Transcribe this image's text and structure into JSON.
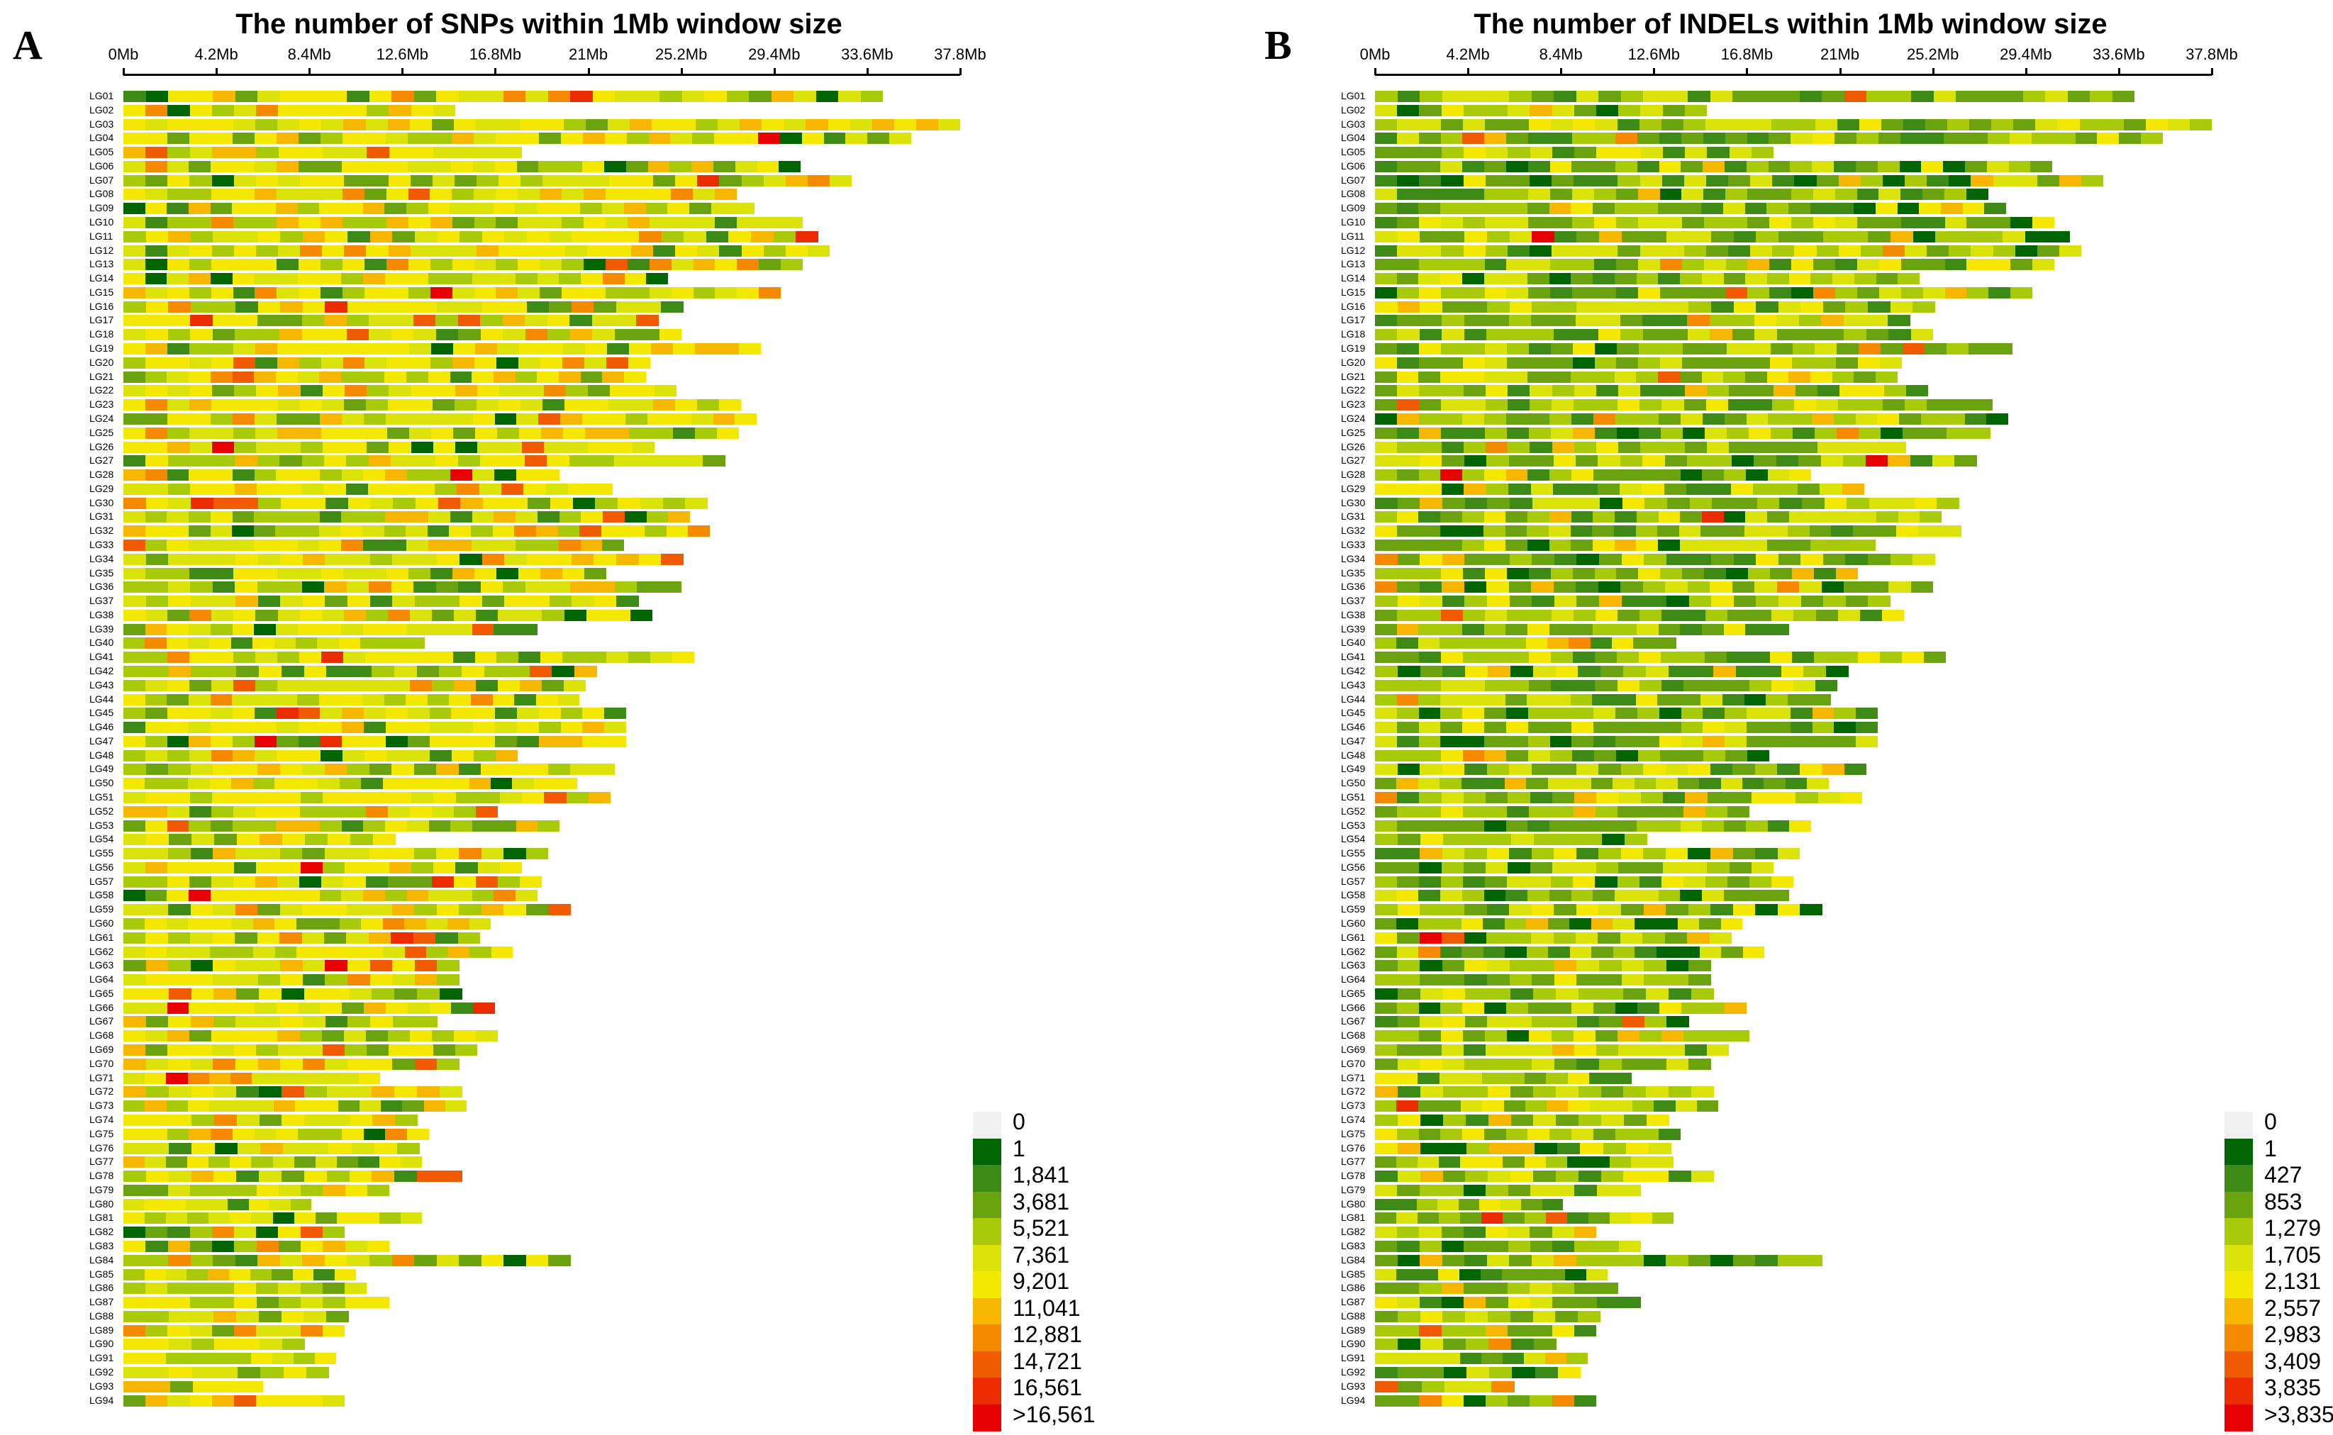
{
  "chart_data": [
    {
      "panel": "A",
      "type": "heatmap",
      "title": "The number of SNPs within 1Mb window size",
      "axis_ticks": [
        "0Mb",
        "4.2Mb",
        "8.4Mb",
        "12.6Mb",
        "16.8Mb",
        "21Mb",
        "25.2Mb",
        "29.4Mb",
        "33.6Mb",
        "37.8Mb"
      ],
      "axis_range_mb": [
        0,
        37.8
      ],
      "legend": {
        "labels": [
          "0",
          "1",
          "1,841",
          "3,681",
          "5,521",
          "7,361",
          "9,201",
          "11,041",
          "12,881",
          "14,721",
          "16,561",
          ">16,561"
        ],
        "colors": [
          "#f0f0f0",
          "#006400",
          "#3d8a17",
          "#6aa30f",
          "#a9c90b",
          "#dbe30a",
          "#f5e800",
          "#f7b700",
          "#f58a00",
          "#f05a00",
          "#eb2b00",
          "#e80000"
        ]
      },
      "chromosomes": [
        "LG01",
        "LG02",
        "LG03",
        "LG04",
        "LG05",
        "LG06",
        "LG07",
        "LG08",
        "LG09",
        "LG10",
        "LG11",
        "LG12",
        "LG13",
        "LG14",
        "LG15",
        "LG16",
        "LG17",
        "LG18",
        "LG19",
        "LG20",
        "LG21",
        "LG22",
        "LG23",
        "LG24",
        "LG25",
        "LG26",
        "LG27",
        "LG28",
        "LG29",
        "LG30",
        "LG31",
        "LG32",
        "LG33",
        "LG34",
        "LG35",
        "LG36",
        "LG37",
        "LG38",
        "LG39",
        "LG40",
        "LG41",
        "LG42",
        "LG43",
        "LG44",
        "LG45",
        "LG46",
        "LG47",
        "LG48",
        "LG49",
        "LG50",
        "LG51",
        "LG52",
        "LG53",
        "LG54",
        "LG55",
        "LG56",
        "LG57",
        "LG58",
        "LG59",
        "LG60",
        "LG61",
        "LG62",
        "LG63",
        "LG64",
        "LG65",
        "LG66",
        "LG67",
        "LG68",
        "LG69",
        "LG70",
        "LG71",
        "LG72",
        "LG73",
        "LG74",
        "LG75",
        "LG76",
        "LG77",
        "LG78",
        "LG79",
        "LG80",
        "LG81",
        "LG82",
        "LG83",
        "LG84",
        "LG85",
        "LG86",
        "LG87",
        "LG88",
        "LG89",
        "LG90",
        "LG91",
        "LG92",
        "LG93",
        "LG94"
      ],
      "lengths_mb": [
        34.3,
        15.0,
        37.8,
        35.6,
        18.0,
        30.6,
        32.9,
        27.7,
        28.5,
        30.7,
        31.4,
        31.9,
        30.7,
        24.6,
        29.7,
        25.3,
        24.2,
        25.2,
        28.8,
        23.8,
        23.6,
        25.0,
        27.9,
        28.6,
        27.8,
        24.0,
        27.2,
        19.7,
        22.1,
        26.4,
        25.6,
        26.5,
        22.6,
        25.3,
        21.8,
        25.2,
        23.3,
        23.9,
        18.7,
        13.6,
        25.8,
        21.4,
        20.9,
        20.6,
        22.7,
        22.7,
        22.7,
        17.8,
        22.2,
        20.5,
        22.0,
        16.9,
        19.7,
        12.3,
        19.2,
        18.0,
        18.9,
        18.7,
        20.2,
        16.6,
        16.1,
        17.6,
        15.2,
        15.2,
        15.3,
        16.8,
        14.2,
        16.9,
        16.0,
        15.2,
        11.6,
        15.3,
        15.5,
        13.3,
        13.8,
        13.4,
        13.5,
        15.3,
        12.0,
        8.5,
        13.5,
        10.0,
        12.0,
        20.2,
        10.5,
        11.0,
        12.0,
        10.2,
        10.0,
        8.2,
        9.6,
        9.3,
        6.3,
        10.0
      ]
    },
    {
      "panel": "B",
      "type": "heatmap",
      "title": "The number of INDELs within 1Mb window size",
      "axis_ticks": [
        "0Mb",
        "4.2Mb",
        "8.4Mb",
        "12.6Mb",
        "16.8Mb",
        "21Mb",
        "25.2Mb",
        "29.4Mb",
        "33.6Mb",
        "37.8Mb"
      ],
      "axis_range_mb": [
        0,
        37.8
      ],
      "legend": {
        "labels": [
          "0",
          "1",
          "427",
          "853",
          "1,279",
          "1,705",
          "2,131",
          "2,557",
          "2,983",
          "3,409",
          "3,835",
          ">3,835"
        ],
        "colors": [
          "#f0f0f0",
          "#006400",
          "#3d8a17",
          "#6aa30f",
          "#a9c90b",
          "#dbe30a",
          "#f5e800",
          "#f7b700",
          "#f58a00",
          "#f05a00",
          "#eb2b00",
          "#e80000"
        ]
      },
      "chromosomes": [
        "LG01",
        "LG02",
        "LG03",
        "LG04",
        "LG05",
        "LG06",
        "LG07",
        "LG08",
        "LG09",
        "LG10",
        "LG11",
        "LG12",
        "LG13",
        "LG14",
        "LG15",
        "LG16",
        "LG17",
        "LG18",
        "LG19",
        "LG20",
        "LG21",
        "LG22",
        "LG23",
        "LG24",
        "LG25",
        "LG26",
        "LG27",
        "LG28",
        "LG29",
        "LG30",
        "LG31",
        "LG32",
        "LG33",
        "LG34",
        "LG35",
        "LG36",
        "LG37",
        "LG38",
        "LG39",
        "LG40",
        "LG41",
        "LG42",
        "LG43",
        "LG44",
        "LG45",
        "LG46",
        "LG47",
        "LG48",
        "LG49",
        "LG50",
        "LG51",
        "LG52",
        "LG53",
        "LG54",
        "LG55",
        "LG56",
        "LG57",
        "LG58",
        "LG59",
        "LG60",
        "LG61",
        "LG62",
        "LG63",
        "LG64",
        "LG65",
        "LG66",
        "LG67",
        "LG68",
        "LG69",
        "LG70",
        "LG71",
        "LG72",
        "LG73",
        "LG74",
        "LG75",
        "LG76",
        "LG77",
        "LG78",
        "LG79",
        "LG80",
        "LG81",
        "LG82",
        "LG83",
        "LG84",
        "LG85",
        "LG86",
        "LG87",
        "LG88",
        "LG89",
        "LG90",
        "LG91",
        "LG92",
        "LG93",
        "LG94"
      ],
      "lengths_mb": [
        34.3,
        15.0,
        37.8,
        35.6,
        18.0,
        30.6,
        32.9,
        27.7,
        28.5,
        30.7,
        31.4,
        31.9,
        30.7,
        24.6,
        29.7,
        25.3,
        24.2,
        25.2,
        28.8,
        23.8,
        23.6,
        25.0,
        27.9,
        28.6,
        27.8,
        24.0,
        27.2,
        19.7,
        22.1,
        26.4,
        25.6,
        26.5,
        22.6,
        25.3,
        21.8,
        25.2,
        23.3,
        23.9,
        18.7,
        13.6,
        25.8,
        21.4,
        20.9,
        20.6,
        22.7,
        22.7,
        22.7,
        17.8,
        22.2,
        20.5,
        22.0,
        16.9,
        19.7,
        12.3,
        19.2,
        18.0,
        18.9,
        18.7,
        20.2,
        16.6,
        16.1,
        17.6,
        15.2,
        15.2,
        15.3,
        16.8,
        14.2,
        16.9,
        16.0,
        15.2,
        11.6,
        15.3,
        15.5,
        13.3,
        13.8,
        13.4,
        13.5,
        15.3,
        12.0,
        8.5,
        13.5,
        10.0,
        12.0,
        20.2,
        10.5,
        11.0,
        12.0,
        10.2,
        10.0,
        8.2,
        9.6,
        9.3,
        6.3,
        10.0
      ]
    }
  ]
}
